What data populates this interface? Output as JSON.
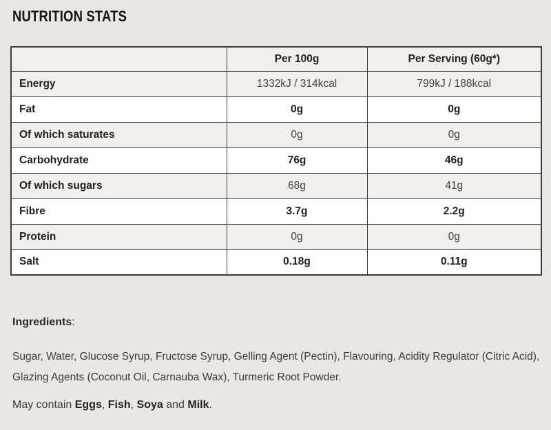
{
  "page": {
    "title": "NUTRITION STATS",
    "background_color": "#e9e7e4",
    "stripe_color": "#f0efec",
    "border_color": "#3b3b3b"
  },
  "table": {
    "columns": [
      "",
      "Per 100g",
      "Per Serving (60g*)"
    ],
    "rows": [
      {
        "label": "Energy",
        "per_100g": "1332kJ / 314kcal",
        "per_serving": "799kJ / 188kcal",
        "bold": false
      },
      {
        "label": "Fat",
        "per_100g": "0g",
        "per_serving": "0g",
        "bold": true
      },
      {
        "label": "Of which saturates",
        "per_100g": "0g",
        "per_serving": "0g",
        "bold": false
      },
      {
        "label": "Carbohydrate",
        "per_100g": "76g",
        "per_serving": "46g",
        "bold": true
      },
      {
        "label": "Of which sugars",
        "per_100g": "68g",
        "per_serving": "41g",
        "bold": false
      },
      {
        "label": "Fibre",
        "per_100g": "3.7g",
        "per_serving": "2.2g",
        "bold": true
      },
      {
        "label": "Protein",
        "per_100g": "0g",
        "per_serving": "0g",
        "bold": false
      },
      {
        "label": "Salt",
        "per_100g": "0.18g",
        "per_serving": "0.11g",
        "bold": true
      }
    ]
  },
  "footer": {
    "ingredients_label": "Ingredients",
    "ingredients_colon": ":",
    "ingredients_text": "Sugar, Water, Glucose Syrup, Fructose Syrup, Gelling Agent (Pectin), Flavouring, Acidity Regulator (Citric Acid), Glazing Agents (Coconut Oil, Carnauba Wax), Turmeric Root Powder.",
    "may_contain": [
      {
        "text": "May contain ",
        "bold": false
      },
      {
        "text": "Eggs",
        "bold": true
      },
      {
        "text": ", ",
        "bold": false
      },
      {
        "text": "Fish",
        "bold": true
      },
      {
        "text": ", ",
        "bold": false
      },
      {
        "text": "Soya",
        "bold": true
      },
      {
        "text": " and ",
        "bold": false
      },
      {
        "text": "Milk",
        "bold": true
      },
      {
        "text": ".",
        "bold": false
      }
    ]
  }
}
